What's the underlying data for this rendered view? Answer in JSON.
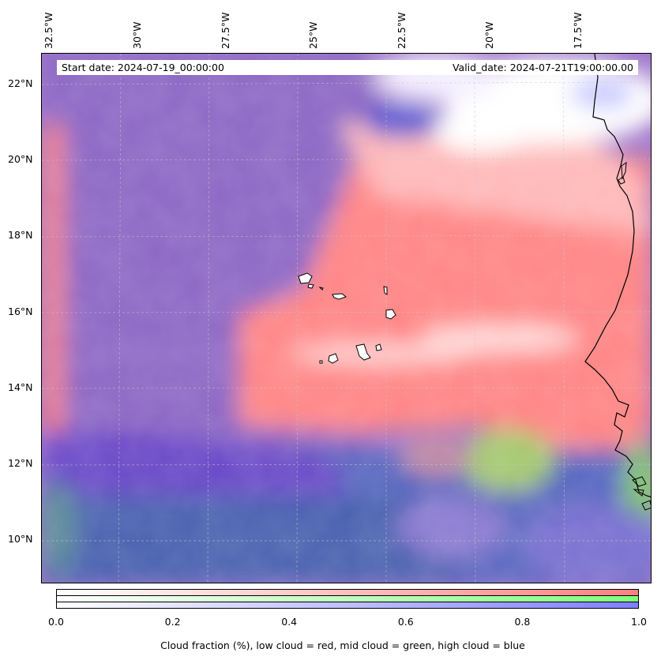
{
  "map": {
    "lon_labels": [
      "32.5°W",
      "30°W",
      "27.5°W",
      "25°W",
      "22.5°W",
      "20°W",
      "17.5°W"
    ],
    "lat_labels": [
      "22°N",
      "20°N",
      "18°N",
      "16°N",
      "14°N",
      "12°N",
      "10°N"
    ],
    "lon_range": [
      -33.0,
      -16.0
    ],
    "lat_range": [
      8.8,
      22.8
    ],
    "start_date": "Start date: 2024-07-19_00:00:00",
    "valid_date": "Valid_date: 2024-07-21T19:00:00.00",
    "layers": [
      {
        "name": "low cloud",
        "color": "#ff7f7f"
      },
      {
        "name": "mid cloud",
        "color": "#7fff7f"
      },
      {
        "name": "high cloud",
        "color": "#7f7fff"
      }
    ],
    "gridlines": true
  },
  "colorbar": {
    "ticks": [
      "0.0",
      "0.2",
      "0.4",
      "0.6",
      "0.8",
      "1.0"
    ],
    "label": "Cloud fraction (%), low cloud = red, mid cloud = green, high cloud = blue",
    "range": [
      0.0,
      1.0
    ]
  },
  "colors": {
    "low": "#ff8080",
    "mid": "#80ff80",
    "high": "#8080ff",
    "coast": "#000000"
  }
}
